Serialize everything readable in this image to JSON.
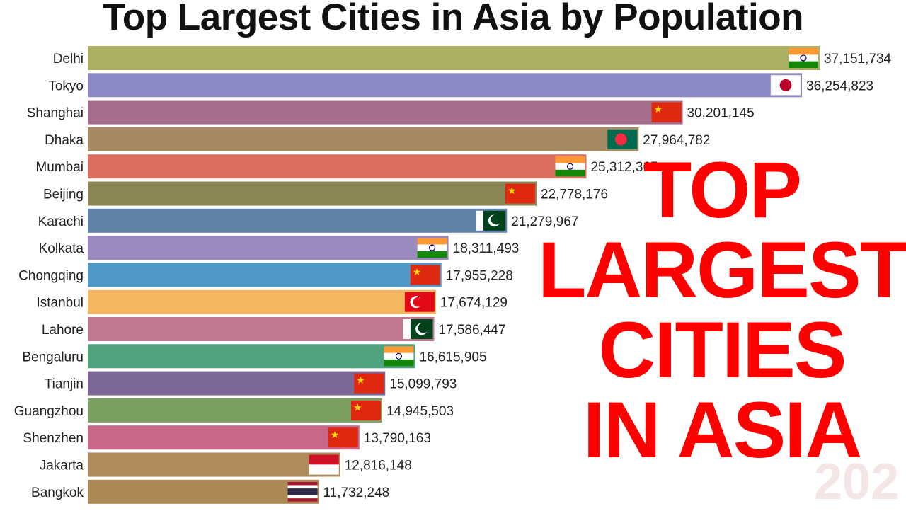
{
  "title": "Top Largest Cities in Asia by Population",
  "overlay": {
    "line1": "TOP",
    "line2": "LARGEST",
    "line3": "CITIES",
    "line4": "IN ASIA"
  },
  "watermark_year": "202",
  "chart_data": {
    "type": "bar",
    "orientation": "horizontal",
    "title": "Top Largest Cities in Asia by Population",
    "categories": [
      "Delhi",
      "Tokyo",
      "Shanghai",
      "Dhaka",
      "Mumbai",
      "Beijing",
      "Karachi",
      "Kolkata",
      "Chongqing",
      "Istanbul",
      "Lahore",
      "Bengaluru",
      "Tianjin",
      "Guangzhou",
      "Shenzhen",
      "Jakarta",
      "Bangkok"
    ],
    "values": [
      37151734,
      36254823,
      30201145,
      27964782,
      25312365,
      22778176,
      21279967,
      18311493,
      17955228,
      17674129,
      17586447,
      16615905,
      15099793,
      14945503,
      13790163,
      12816148,
      11732248
    ],
    "value_labels": [
      "37,151,734",
      "36,254,823",
      "30,201,145",
      "27,964,782",
      "25,312,365",
      "22,778,176",
      "21,279,967",
      "18,311,493",
      "17,955,228",
      "17,674,129",
      "17,586,447",
      "16,615,905",
      "15,099,793",
      "14,945,503",
      "13,790,163",
      "12,816,148",
      "11,732,248"
    ],
    "countries": [
      "India",
      "Japan",
      "China",
      "Bangladesh",
      "India",
      "China",
      "Pakistan",
      "India",
      "China",
      "Turkey",
      "Pakistan",
      "India",
      "China",
      "China",
      "China",
      "Indonesia",
      "Thailand"
    ],
    "colors": [
      "#abaf61",
      "#8c88c4",
      "#a56c8c",
      "#a68a64",
      "#da6f5f",
      "#8a8656",
      "#6283a8",
      "#9b8abf",
      "#4f98c7",
      "#f3b661",
      "#bf7890",
      "#52a17f",
      "#7b6897",
      "#7ba061",
      "#c8698a",
      "#ad8b5c",
      "#ab8a57"
    ]
  }
}
